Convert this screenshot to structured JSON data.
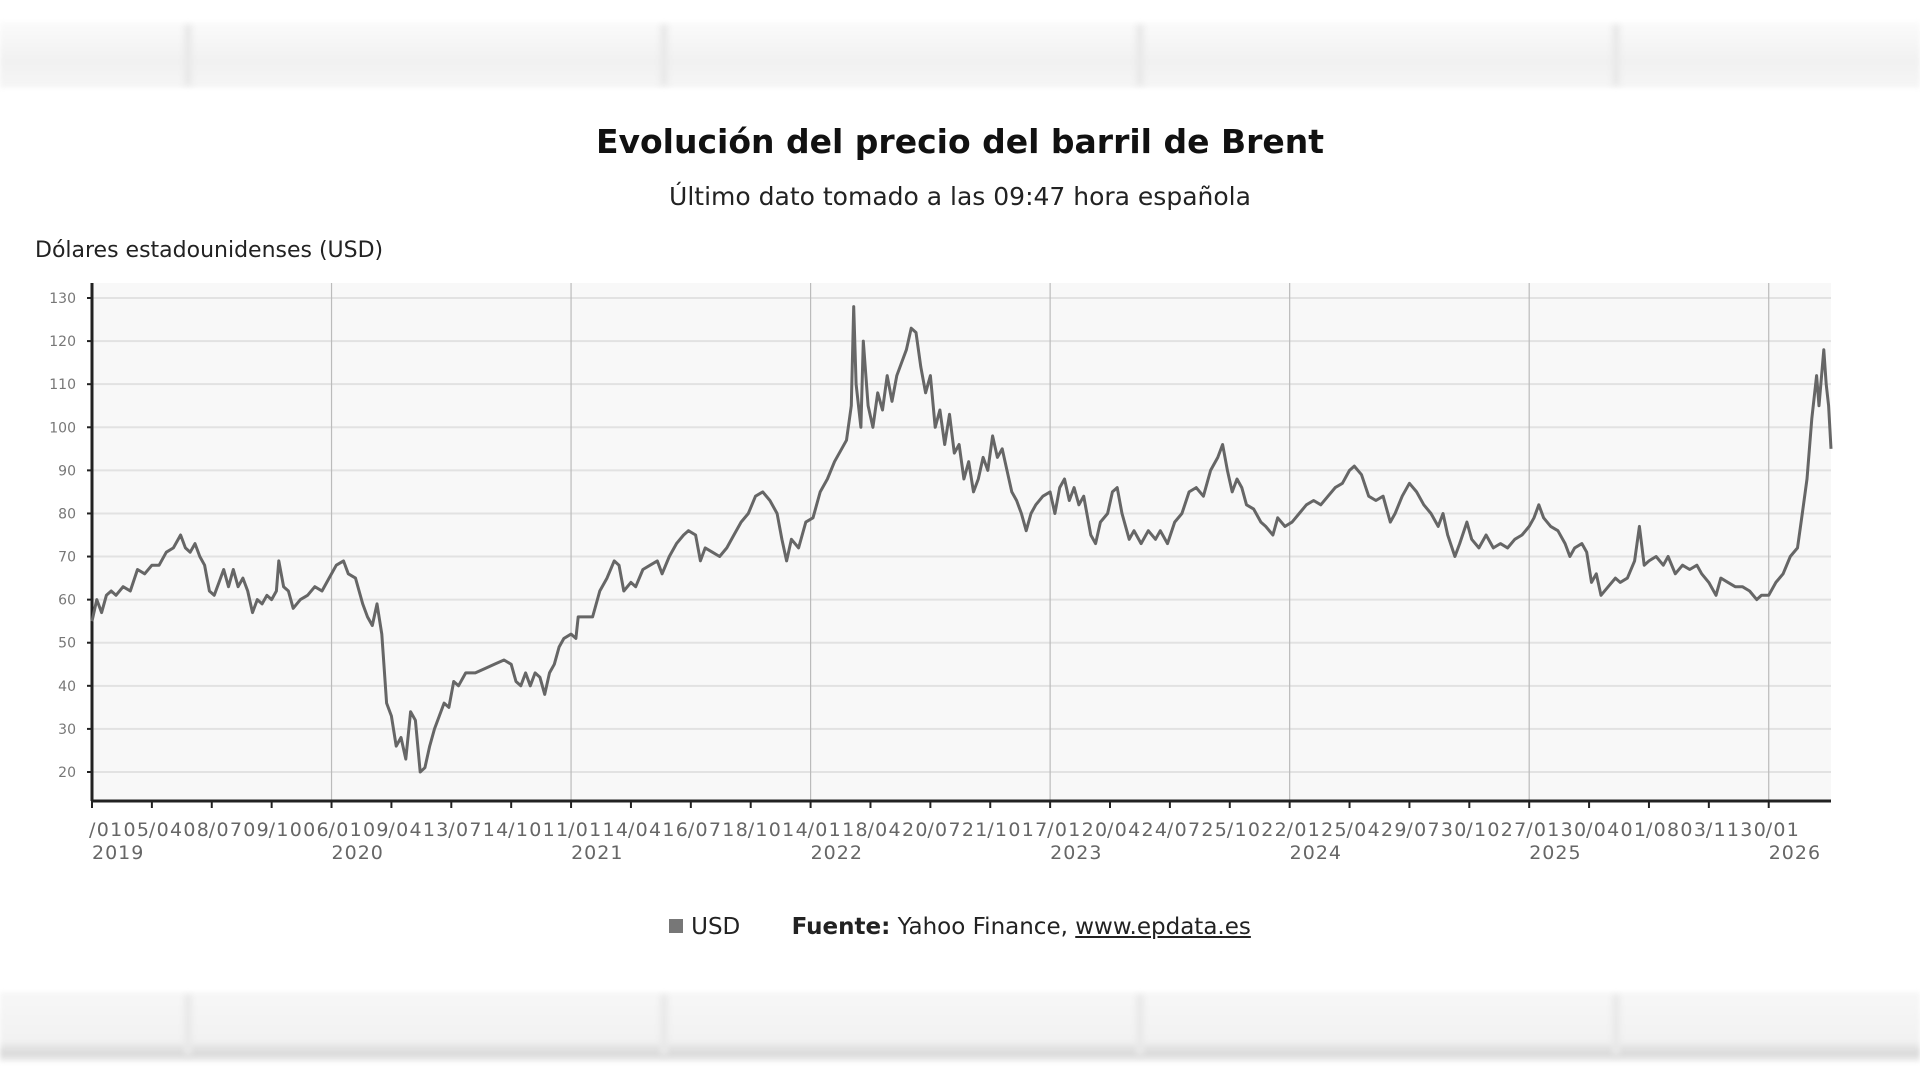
{
  "chart_data": {
    "type": "line",
    "title": "Evolución del precio del barril de Brent",
    "subtitle": "Último dato tomado a las 09:47 hora española",
    "ylabel": "Dólares estadounidenses (USD)",
    "xlabel": "",
    "ylim": [
      13,
      132
    ],
    "xlim": [
      2019.0,
      2026.26
    ],
    "yticks": [
      20,
      30,
      40,
      50,
      60,
      70,
      80,
      90,
      100,
      110,
      120,
      130
    ],
    "xtick_labels": [
      "0105",
      "0408",
      "0709",
      "1006",
      "0109",
      "0413",
      "0714",
      "1011",
      "0114",
      "0416",
      "0718",
      "1014",
      "0118",
      "0420",
      "0721",
      "1017",
      "0120",
      "0424",
      "0725",
      "1022",
      "0125",
      "0429",
      "0730",
      "1027",
      "0130",
      "0401",
      "0803",
      "1130",
      "01"
    ],
    "year_labels": [
      "2019",
      "2020",
      "2021",
      "2022",
      "2023",
      "2024",
      "2025",
      "2026"
    ],
    "grid": "horizontal and yearly vertical",
    "legend": {
      "position": "bottom-center",
      "entries": [
        "USD"
      ]
    },
    "series": [
      {
        "name": "USD",
        "color": "#666666",
        "points": [
          [
            2019.0,
            55
          ],
          [
            2019.02,
            60
          ],
          [
            2019.04,
            57
          ],
          [
            2019.06,
            61
          ],
          [
            2019.08,
            62
          ],
          [
            2019.1,
            61
          ],
          [
            2019.13,
            63
          ],
          [
            2019.16,
            62
          ],
          [
            2019.19,
            67
          ],
          [
            2019.22,
            66
          ],
          [
            2019.25,
            68
          ],
          [
            2019.28,
            68
          ],
          [
            2019.31,
            71
          ],
          [
            2019.34,
            72
          ],
          [
            2019.37,
            75
          ],
          [
            2019.39,
            72
          ],
          [
            2019.41,
            71
          ],
          [
            2019.43,
            73
          ],
          [
            2019.45,
            70
          ],
          [
            2019.47,
            68
          ],
          [
            2019.49,
            62
          ],
          [
            2019.51,
            61
          ],
          [
            2019.53,
            64
          ],
          [
            2019.55,
            67
          ],
          [
            2019.57,
            63
          ],
          [
            2019.59,
            67
          ],
          [
            2019.61,
            63
          ],
          [
            2019.63,
            65
          ],
          [
            2019.65,
            62
          ],
          [
            2019.67,
            57
          ],
          [
            2019.69,
            60
          ],
          [
            2019.71,
            59
          ],
          [
            2019.73,
            61
          ],
          [
            2019.75,
            60
          ],
          [
            2019.77,
            62
          ],
          [
            2019.78,
            69
          ],
          [
            2019.8,
            63
          ],
          [
            2019.82,
            62
          ],
          [
            2019.84,
            58
          ],
          [
            2019.87,
            60
          ],
          [
            2019.9,
            61
          ],
          [
            2019.93,
            63
          ],
          [
            2019.96,
            62
          ],
          [
            2019.99,
            65
          ],
          [
            2020.02,
            68
          ],
          [
            2020.05,
            69
          ],
          [
            2020.07,
            66
          ],
          [
            2020.1,
            65
          ],
          [
            2020.13,
            59
          ],
          [
            2020.15,
            56
          ],
          [
            2020.17,
            54
          ],
          [
            2020.19,
            59
          ],
          [
            2020.21,
            52
          ],
          [
            2020.23,
            36
          ],
          [
            2020.25,
            33
          ],
          [
            2020.27,
            26
          ],
          [
            2020.29,
            28
          ],
          [
            2020.31,
            23
          ],
          [
            2020.33,
            34
          ],
          [
            2020.35,
            32
          ],
          [
            2020.37,
            20
          ],
          [
            2020.39,
            21
          ],
          [
            2020.41,
            26
          ],
          [
            2020.43,
            30
          ],
          [
            2020.45,
            33
          ],
          [
            2020.47,
            36
          ],
          [
            2020.49,
            35
          ],
          [
            2020.51,
            41
          ],
          [
            2020.53,
            40
          ],
          [
            2020.56,
            43
          ],
          [
            2020.6,
            43
          ],
          [
            2020.64,
            44
          ],
          [
            2020.68,
            45
          ],
          [
            2020.72,
            46
          ],
          [
            2020.75,
            45
          ],
          [
            2020.77,
            41
          ],
          [
            2020.79,
            40
          ],
          [
            2020.81,
            43
          ],
          [
            2020.83,
            40
          ],
          [
            2020.85,
            43
          ],
          [
            2020.87,
            42
          ],
          [
            2020.89,
            38
          ],
          [
            2020.91,
            43
          ],
          [
            2020.93,
            45
          ],
          [
            2020.95,
            49
          ],
          [
            2020.97,
            51
          ],
          [
            2021.0,
            52
          ],
          [
            2021.02,
            51
          ],
          [
            2021.03,
            56
          ],
          [
            2021.06,
            56
          ],
          [
            2021.09,
            56
          ],
          [
            2021.12,
            62
          ],
          [
            2021.15,
            65
          ],
          [
            2021.18,
            69
          ],
          [
            2021.2,
            68
          ],
          [
            2021.22,
            62
          ],
          [
            2021.25,
            64
          ],
          [
            2021.27,
            63
          ],
          [
            2021.3,
            67
          ],
          [
            2021.33,
            68
          ],
          [
            2021.36,
            69
          ],
          [
            2021.38,
            66
          ],
          [
            2021.41,
            70
          ],
          [
            2021.44,
            73
          ],
          [
            2021.47,
            75
          ],
          [
            2021.49,
            76
          ],
          [
            2021.52,
            75
          ],
          [
            2021.54,
            69
          ],
          [
            2021.56,
            72
          ],
          [
            2021.59,
            71
          ],
          [
            2021.62,
            70
          ],
          [
            2021.65,
            72
          ],
          [
            2021.68,
            75
          ],
          [
            2021.71,
            78
          ],
          [
            2021.74,
            80
          ],
          [
            2021.77,
            84
          ],
          [
            2021.8,
            85
          ],
          [
            2021.83,
            83
          ],
          [
            2021.86,
            80
          ],
          [
            2021.88,
            74
          ],
          [
            2021.9,
            69
          ],
          [
            2021.92,
            74
          ],
          [
            2021.95,
            72
          ],
          [
            2021.98,
            78
          ],
          [
            2022.01,
            79
          ],
          [
            2022.04,
            85
          ],
          [
            2022.07,
            88
          ],
          [
            2022.1,
            92
          ],
          [
            2022.13,
            95
          ],
          [
            2022.15,
            97
          ],
          [
            2022.17,
            105
          ],
          [
            2022.18,
            128
          ],
          [
            2022.19,
            110
          ],
          [
            2022.21,
            100
          ],
          [
            2022.22,
            120
          ],
          [
            2022.24,
            105
          ],
          [
            2022.26,
            100
          ],
          [
            2022.28,
            108
          ],
          [
            2022.3,
            104
          ],
          [
            2022.32,
            112
          ],
          [
            2022.34,
            106
          ],
          [
            2022.36,
            112
          ],
          [
            2022.38,
            115
          ],
          [
            2022.4,
            118
          ],
          [
            2022.42,
            123
          ],
          [
            2022.44,
            122
          ],
          [
            2022.46,
            114
          ],
          [
            2022.48,
            108
          ],
          [
            2022.5,
            112
          ],
          [
            2022.52,
            100
          ],
          [
            2022.54,
            104
          ],
          [
            2022.56,
            96
          ],
          [
            2022.58,
            103
          ],
          [
            2022.6,
            94
          ],
          [
            2022.62,
            96
          ],
          [
            2022.64,
            88
          ],
          [
            2022.66,
            92
          ],
          [
            2022.68,
            85
          ],
          [
            2022.7,
            88
          ],
          [
            2022.72,
            93
          ],
          [
            2022.74,
            90
          ],
          [
            2022.76,
            98
          ],
          [
            2022.78,
            93
          ],
          [
            2022.8,
            95
          ],
          [
            2022.82,
            90
          ],
          [
            2022.84,
            85
          ],
          [
            2022.86,
            83
          ],
          [
            2022.88,
            80
          ],
          [
            2022.9,
            76
          ],
          [
            2022.92,
            80
          ],
          [
            2022.94,
            82
          ],
          [
            2022.97,
            84
          ],
          [
            2023.0,
            85
          ],
          [
            2023.02,
            80
          ],
          [
            2023.04,
            86
          ],
          [
            2023.06,
            88
          ],
          [
            2023.08,
            83
          ],
          [
            2023.1,
            86
          ],
          [
            2023.12,
            82
          ],
          [
            2023.14,
            84
          ],
          [
            2023.17,
            75
          ],
          [
            2023.19,
            73
          ],
          [
            2023.21,
            78
          ],
          [
            2023.24,
            80
          ],
          [
            2023.26,
            85
          ],
          [
            2023.28,
            86
          ],
          [
            2023.3,
            80
          ],
          [
            2023.33,
            74
          ],
          [
            2023.35,
            76
          ],
          [
            2023.38,
            73
          ],
          [
            2023.41,
            76
          ],
          [
            2023.44,
            74
          ],
          [
            2023.46,
            76
          ],
          [
            2023.49,
            73
          ],
          [
            2023.52,
            78
          ],
          [
            2023.55,
            80
          ],
          [
            2023.58,
            85
          ],
          [
            2023.61,
            86
          ],
          [
            2023.64,
            84
          ],
          [
            2023.67,
            90
          ],
          [
            2023.7,
            93
          ],
          [
            2023.72,
            96
          ],
          [
            2023.74,
            90
          ],
          [
            2023.76,
            85
          ],
          [
            2023.78,
            88
          ],
          [
            2023.8,
            86
          ],
          [
            2023.82,
            82
          ],
          [
            2023.85,
            81
          ],
          [
            2023.88,
            78
          ],
          [
            2023.9,
            77
          ],
          [
            2023.93,
            75
          ],
          [
            2023.95,
            79
          ],
          [
            2023.98,
            77
          ],
          [
            2024.01,
            78
          ],
          [
            2024.04,
            80
          ],
          [
            2024.07,
            82
          ],
          [
            2024.1,
            83
          ],
          [
            2024.13,
            82
          ],
          [
            2024.16,
            84
          ],
          [
            2024.19,
            86
          ],
          [
            2024.22,
            87
          ],
          [
            2024.25,
            90
          ],
          [
            2024.27,
            91
          ],
          [
            2024.3,
            89
          ],
          [
            2024.33,
            84
          ],
          [
            2024.36,
            83
          ],
          [
            2024.39,
            84
          ],
          [
            2024.42,
            78
          ],
          [
            2024.44,
            80
          ],
          [
            2024.47,
            84
          ],
          [
            2024.5,
            87
          ],
          [
            2024.53,
            85
          ],
          [
            2024.56,
            82
          ],
          [
            2024.59,
            80
          ],
          [
            2024.62,
            77
          ],
          [
            2024.64,
            80
          ],
          [
            2024.66,
            75
          ],
          [
            2024.69,
            70
          ],
          [
            2024.71,
            73
          ],
          [
            2024.74,
            78
          ],
          [
            2024.76,
            74
          ],
          [
            2024.79,
            72
          ],
          [
            2024.82,
            75
          ],
          [
            2024.85,
            72
          ],
          [
            2024.88,
            73
          ],
          [
            2024.91,
            72
          ],
          [
            2024.94,
            74
          ],
          [
            2024.97,
            75
          ],
          [
            2025.0,
            77
          ],
          [
            2025.02,
            79
          ],
          [
            2025.04,
            82
          ],
          [
            2025.06,
            79
          ],
          [
            2025.09,
            77
          ],
          [
            2025.12,
            76
          ],
          [
            2025.15,
            73
          ],
          [
            2025.17,
            70
          ],
          [
            2025.19,
            72
          ],
          [
            2025.22,
            73
          ],
          [
            2025.24,
            71
          ],
          [
            2025.26,
            64
          ],
          [
            2025.28,
            66
          ],
          [
            2025.3,
            61
          ],
          [
            2025.33,
            63
          ],
          [
            2025.36,
            65
          ],
          [
            2025.38,
            64
          ],
          [
            2025.41,
            65
          ],
          [
            2025.44,
            69
          ],
          [
            2025.46,
            77
          ],
          [
            2025.48,
            68
          ],
          [
            2025.5,
            69
          ],
          [
            2025.53,
            70
          ],
          [
            2025.56,
            68
          ],
          [
            2025.58,
            70
          ],
          [
            2025.61,
            66
          ],
          [
            2025.64,
            68
          ],
          [
            2025.67,
            67
          ],
          [
            2025.7,
            68
          ],
          [
            2025.72,
            66
          ],
          [
            2025.75,
            64
          ],
          [
            2025.78,
            61
          ],
          [
            2025.8,
            65
          ],
          [
            2025.83,
            64
          ],
          [
            2025.86,
            63
          ],
          [
            2025.89,
            63
          ],
          [
            2025.92,
            62
          ],
          [
            2025.95,
            60
          ],
          [
            2025.97,
            61
          ],
          [
            2026.0,
            61
          ],
          [
            2026.03,
            64
          ],
          [
            2026.06,
            66
          ],
          [
            2026.09,
            70
          ],
          [
            2026.12,
            72
          ],
          [
            2026.14,
            80
          ],
          [
            2026.16,
            88
          ],
          [
            2026.18,
            102
          ],
          [
            2026.2,
            112
          ],
          [
            2026.21,
            105
          ],
          [
            2026.23,
            118
          ],
          [
            2026.24,
            110
          ],
          [
            2026.25,
            105
          ],
          [
            2026.26,
            95
          ]
        ]
      }
    ]
  },
  "legend_label": "USD",
  "source": {
    "label": "Fuente:",
    "text": " Yahoo Finance, ",
    "link": "www.epdata.es"
  }
}
